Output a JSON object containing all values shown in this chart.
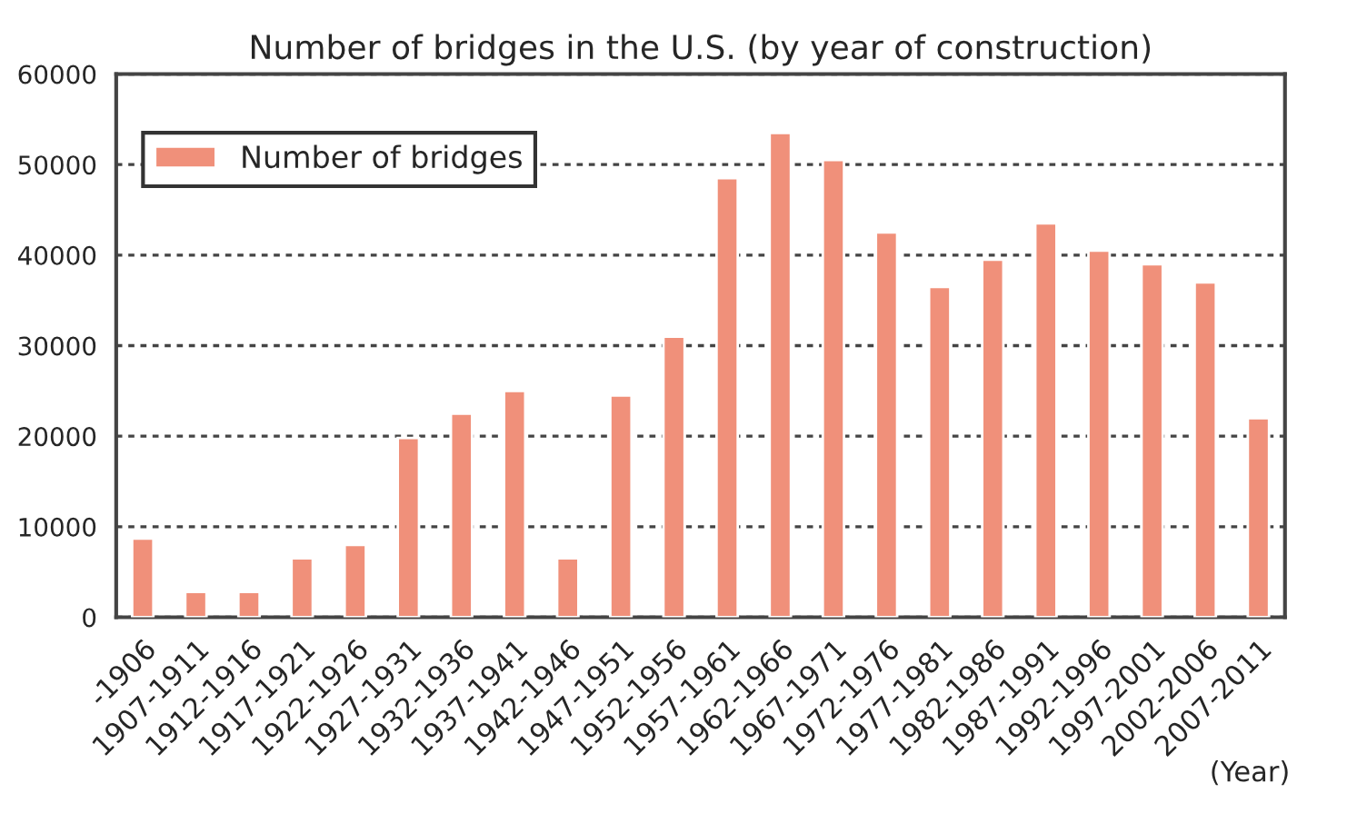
{
  "chart_data": {
    "type": "bar",
    "title": "Number of bridges in the U.S. (by year of construction)",
    "xlabel": "(Year)",
    "categories": [
      "-1906",
      "1907-1911",
      "1912-1916",
      "1917-1921",
      "1922-1926",
      "1927-1931",
      "1932-1936",
      "1937-1941",
      "1942-1946",
      "1947-1951",
      "1952-1956",
      "1957-1961",
      "1962-1966",
      "1967-1971",
      "1972-1976",
      "1977-1981",
      "1982-1986",
      "1987-1991",
      "1992-1996",
      "1997-2001",
      "2002-2006",
      "2007-2011"
    ],
    "series": [
      {
        "name": "Number of bridges",
        "color": "#f0907a",
        "values": [
          8700,
          2800,
          2800,
          6500,
          8000,
          19800,
          22500,
          25000,
          6500,
          24500,
          31000,
          48500,
          53500,
          50500,
          42500,
          36500,
          39500,
          43500,
          40500,
          39000,
          37000,
          22000
        ]
      }
    ],
    "ylim": [
      0,
      60000
    ],
    "yticks": [
      0,
      10000,
      20000,
      30000,
      40000,
      50000,
      60000
    ],
    "grid": "y",
    "legend": "top left"
  }
}
